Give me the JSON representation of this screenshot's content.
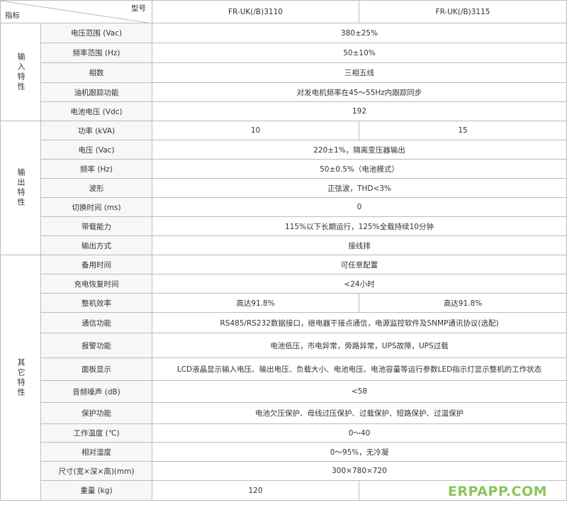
{
  "header": {
    "model_label": "型号",
    "index_label": "指标",
    "models": [
      "FR-UK(/B)3110",
      "FR-UK(/B)3115"
    ]
  },
  "groups": [
    {
      "label": "输入特性",
      "rows": [
        {
          "label": "电压范围 (Vac)",
          "values": [
            "380±25%"
          ]
        },
        {
          "label": "频率范围 (Hz)",
          "values": [
            "50±10%"
          ]
        },
        {
          "label": "相数",
          "values": [
            "三相五线"
          ]
        },
        {
          "label": "油机跟踪功能",
          "values": [
            "对发电机频率在45～55Hz内跟踪同步"
          ]
        },
        {
          "label": "电池电压 (Vdc)",
          "values": [
            "192"
          ]
        }
      ]
    },
    {
      "label": "输出特性",
      "rows": [
        {
          "label": "功率 (kVA)",
          "values": [
            "10",
            "15"
          ]
        },
        {
          "label": "电压 (Vac)",
          "values": [
            "220±1%，隔离变压器输出"
          ]
        },
        {
          "label": "频率 (Hz)",
          "values": [
            "50±0.5%（电池模式）"
          ]
        },
        {
          "label": "波形",
          "values": [
            "正弦波，THD<3%"
          ]
        },
        {
          "label": "切换时间 (ms)",
          "values": [
            "0"
          ]
        },
        {
          "label": "带载能力",
          "values": [
            "115%以下长期运行，125%全载持续10分钟"
          ]
        },
        {
          "label": "输出方式",
          "values": [
            "接线排"
          ]
        }
      ]
    },
    {
      "label": "其它特性",
      "rows": [
        {
          "label": "备用时间",
          "values": [
            "可任意配置"
          ]
        },
        {
          "label": "充电恢复时间",
          "values": [
            "<24小时"
          ]
        },
        {
          "label": "整机效率",
          "values": [
            "高达91.8%",
            "高达91.8%"
          ]
        },
        {
          "label": "通信功能",
          "values": [
            "RS485/RS232数据接口，继电器干接点通信，电源监控软件及SNMP通讯协议(选配)"
          ]
        },
        {
          "label": "报警功能",
          "values": [
            "电池低压，市电异常，旁路异常，UPS故障，UPS过载"
          ]
        },
        {
          "label": "面板显示",
          "values": [
            "LCD液晶显示输入电压、输出电压、负载大小、电池电压、电池容量等运行参数LED指示灯显示整机的工作状态"
          ]
        },
        {
          "label": "音频噪声 (dB)",
          "values": [
            "<58"
          ]
        },
        {
          "label": "保护功能",
          "values": [
            "电池欠压保护、母线过压保护、过载保护、短路保护、过温保护"
          ]
        },
        {
          "label": "工作温度 (℃)",
          "values": [
            "0～40"
          ]
        },
        {
          "label": "相对湿度",
          "values": [
            "0～95%，无冷凝"
          ]
        },
        {
          "label": "尺寸(宽×深×高)(mm)",
          "values": [
            "300×780×720"
          ]
        },
        {
          "label": "重量 (kg)",
          "values": [
            "120",
            "-"
          ]
        }
      ]
    }
  ],
  "watermark": "ERPAPP.COM"
}
